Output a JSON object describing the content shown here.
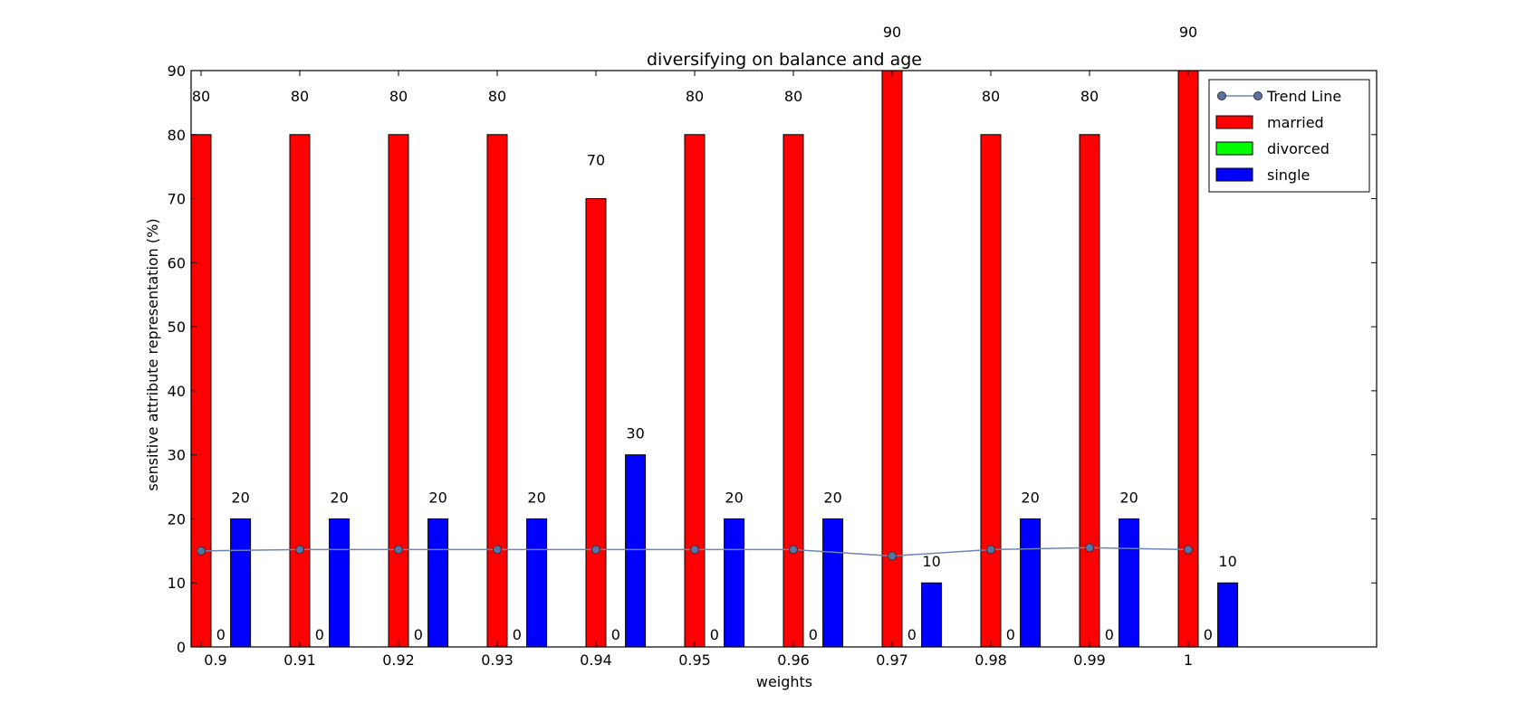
{
  "chart_data": {
    "type": "bar",
    "title": "diversifying on balance and age",
    "xlabel": "weights",
    "ylabel": "sensitive attribute representation (%)",
    "ylim": [
      0,
      90
    ],
    "yticks": [
      "0",
      "10",
      "20",
      "30",
      "40",
      "50",
      "60",
      "70",
      "80",
      "90"
    ],
    "categories": [
      "0.9",
      "0.91",
      "0.92",
      "0.93",
      "0.94",
      "0.95",
      "0.96",
      "0.97",
      "0.98",
      "0.99",
      "1"
    ],
    "series": [
      {
        "name": "married",
        "color": "#ff0000",
        "values": [
          80,
          80,
          80,
          80,
          70,
          80,
          80,
          90,
          80,
          80,
          90
        ]
      },
      {
        "name": "divorced",
        "color": "#00ff00",
        "values": [
          0,
          0,
          0,
          0,
          0,
          0,
          0,
          0,
          0,
          0,
          0
        ]
      },
      {
        "name": "single",
        "color": "#0000ff",
        "values": [
          20,
          20,
          20,
          20,
          30,
          20,
          20,
          10,
          20,
          20,
          10
        ]
      }
    ],
    "trend_line": {
      "name": "Trend Line",
      "color": "#6b84b8",
      "values": [
        15.0,
        15.2,
        15.2,
        15.2,
        15.2,
        15.2,
        15.2,
        14.2,
        15.2,
        15.5,
        15.2
      ]
    },
    "legend": {
      "position": "top-right",
      "entries": [
        "Trend Line",
        "married",
        "divorced",
        "single"
      ]
    },
    "grid": false
  }
}
